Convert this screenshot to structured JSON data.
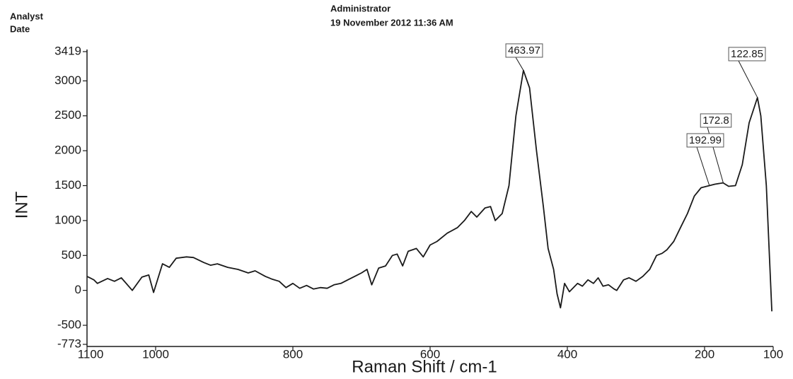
{
  "header": {
    "analyst_label": "Analyst",
    "date_label": "Date",
    "analyst": "Administrator",
    "date": "19 November 2012 11:36 AM"
  },
  "chart_data": {
    "type": "line",
    "x_label": "Raman Shift / cm-1",
    "y_label": "INT",
    "xlim": [
      1100,
      100
    ],
    "xticks": [
      1100,
      1000,
      800,
      600,
      400,
      200,
      100
    ],
    "ylim": [
      -773,
      3419
    ],
    "yticks": [
      -773,
      -500,
      0,
      500,
      1000,
      1500,
      2000,
      2500,
      3000,
      3419
    ],
    "color": "#1a1a1a",
    "x": [
      1100,
      1090,
      1085,
      1070,
      1060,
      1050,
      1034,
      1020,
      1010,
      1003,
      990,
      980,
      970,
      955,
      945,
      930,
      920,
      910,
      895,
      880,
      865,
      855,
      840,
      830,
      820,
      810,
      800,
      790,
      780,
      770,
      760,
      750,
      740,
      730,
      720,
      710,
      700,
      692,
      685,
      675,
      665,
      655,
      648,
      640,
      632,
      620,
      610,
      600,
      590,
      575,
      560,
      550,
      540,
      532,
      520,
      512,
      505,
      495,
      485,
      475,
      464,
      455,
      445,
      435,
      428,
      420,
      415,
      410,
      404,
      397,
      385,
      378,
      370,
      362,
      355,
      348,
      340,
      332,
      328,
      318,
      310,
      300,
      290,
      280,
      270,
      262,
      255,
      245,
      235,
      225,
      215,
      205,
      193,
      185,
      173,
      165,
      155,
      145,
      135,
      123,
      118,
      110,
      102
    ],
    "values": [
      200,
      150,
      100,
      170,
      130,
      180,
      0,
      190,
      220,
      -30,
      380,
      330,
      460,
      480,
      470,
      400,
      360,
      380,
      330,
      300,
      250,
      280,
      200,
      160,
      130,
      40,
      100,
      30,
      70,
      20,
      40,
      30,
      80,
      100,
      150,
      200,
      250,
      300,
      80,
      320,
      350,
      500,
      520,
      350,
      560,
      600,
      480,
      650,
      700,
      820,
      900,
      1000,
      1130,
      1050,
      1180,
      1200,
      1000,
      1100,
      1500,
      2500,
      3150,
      2900,
      2000,
      1200,
      600,
      300,
      -50,
      -250,
      100,
      -20,
      100,
      60,
      150,
      100,
      180,
      60,
      80,
      20,
      0,
      150,
      180,
      130,
      200,
      300,
      500,
      530,
      580,
      700,
      900,
      1100,
      1350,
      1470,
      1500,
      1520,
      1540,
      1490,
      1500,
      1800,
      2400,
      2760,
      2500,
      1500,
      -300
    ],
    "annotations": [
      {
        "x": 463.97,
        "y": 3150
      },
      {
        "x": 122.85,
        "y": 2760
      },
      {
        "x": 172.8,
        "y": 1540
      },
      {
        "x": 192.99,
        "y": 1500
      }
    ]
  }
}
